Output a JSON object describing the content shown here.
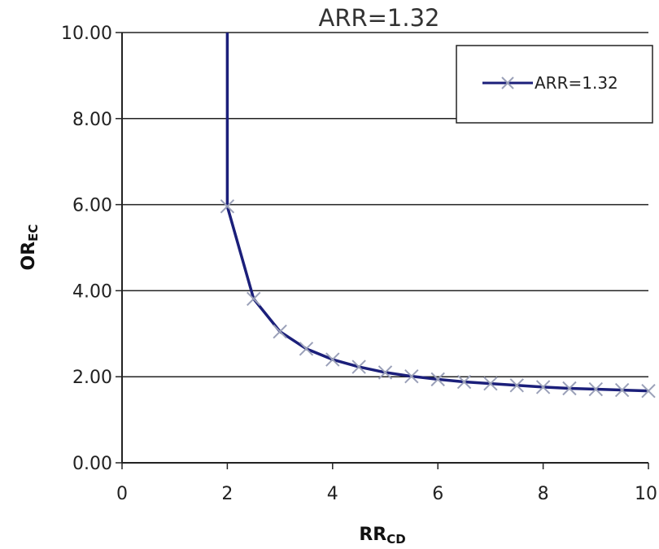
{
  "chart_data": {
    "type": "line",
    "title": "ARR=1.32",
    "xlabel": {
      "main": "RR",
      "sub": "CD"
    },
    "ylabel": {
      "main": "OR",
      "sub": "EC"
    },
    "xlim": [
      0,
      10
    ],
    "ylim": [
      0,
      10
    ],
    "xticks": [
      0,
      2,
      4,
      6,
      8,
      10
    ],
    "yticks": [
      "0.00",
      "2.00",
      "4.00",
      "6.00",
      "8.00",
      "10.00"
    ],
    "grid": "horizontal",
    "legend_position": "top-right",
    "series": [
      {
        "name": "ARR=1.32",
        "color": "#1b1f7a",
        "marker_color": "#9aa0b8",
        "marker": "x",
        "x": [
          2.0,
          2.5,
          3.0,
          3.5,
          4.0,
          4.5,
          5.0,
          5.5,
          6.0,
          6.5,
          7.0,
          7.5,
          8.0,
          8.5,
          9.0,
          9.5,
          10.0
        ],
        "y": [
          5.96,
          3.81,
          3.05,
          2.65,
          2.4,
          2.23,
          2.1,
          2.01,
          1.94,
          1.88,
          1.84,
          1.8,
          1.76,
          1.73,
          1.71,
          1.69,
          1.67
        ]
      }
    ]
  }
}
